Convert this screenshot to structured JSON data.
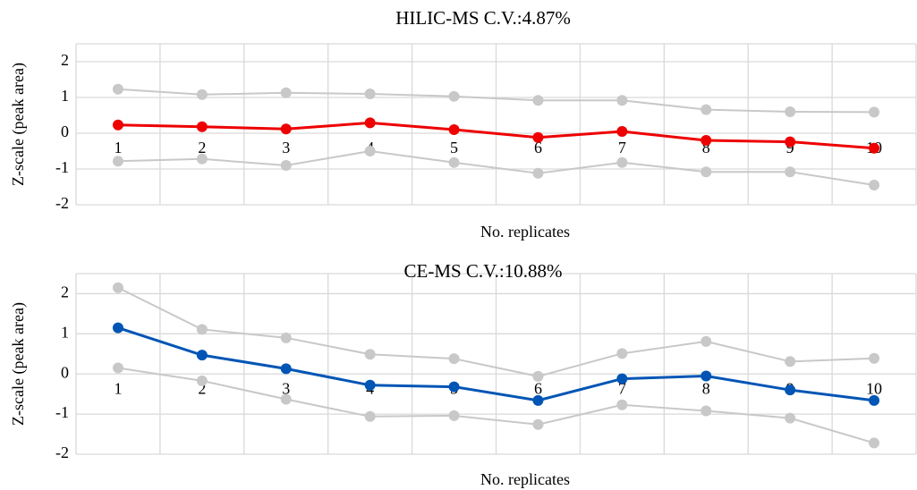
{
  "chart_data": [
    {
      "type": "line",
      "title": "HILIC-MS C.V.:4.87%",
      "x_label": "No. replicates",
      "y_label": "Z-scale (peak area)",
      "categories": [
        "1",
        "2",
        "3",
        "4",
        "5",
        "6",
        "7",
        "8",
        "9",
        "10"
      ],
      "ylim": [
        -2,
        2.5
      ],
      "yticks": [
        -2,
        -1,
        0,
        1,
        2
      ],
      "grid": true,
      "series": [
        {
          "color": "#c8c8c8",
          "values": [
            1.23,
            1.08,
            1.13,
            1.1,
            1.03,
            0.92,
            0.92,
            0.66,
            0.6,
            0.59
          ]
        },
        {
          "color": "#c8c8c8",
          "values": [
            -0.78,
            -0.72,
            -0.9,
            -0.5,
            -0.82,
            -1.12,
            -0.82,
            -1.08,
            -1.08,
            -1.45
          ]
        },
        {
          "color": "#ee0000",
          "values": [
            0.23,
            0.18,
            0.12,
            0.29,
            0.1,
            -0.12,
            0.05,
            -0.2,
            -0.24,
            -0.42
          ]
        }
      ]
    },
    {
      "type": "line",
      "title": "CE-MS C.V.:10.88%",
      "x_label": "No. replicates",
      "y_label": "Z-scale (peak area)",
      "categories": [
        "1",
        "2",
        "3",
        "4",
        "5",
        "6",
        "7",
        "8",
        "9",
        "10"
      ],
      "ylim": [
        -2,
        2.5
      ],
      "yticks": [
        -2,
        -1,
        0,
        1,
        2
      ],
      "grid": true,
      "series": [
        {
          "color": "#c8c8c8",
          "values": [
            2.15,
            1.11,
            0.9,
            0.49,
            0.38,
            -0.06,
            0.51,
            0.81,
            0.31,
            0.39
          ]
        },
        {
          "color": "#c8c8c8",
          "values": [
            0.15,
            -0.17,
            -0.63,
            -1.06,
            -1.04,
            -1.26,
            -0.77,
            -0.92,
            -1.1,
            -1.72
          ]
        },
        {
          "color": "#0055b5",
          "values": [
            1.15,
            0.47,
            0.13,
            -0.28,
            -0.32,
            -0.66,
            -0.12,
            -0.05,
            -0.4,
            -0.66
          ]
        }
      ]
    }
  ]
}
